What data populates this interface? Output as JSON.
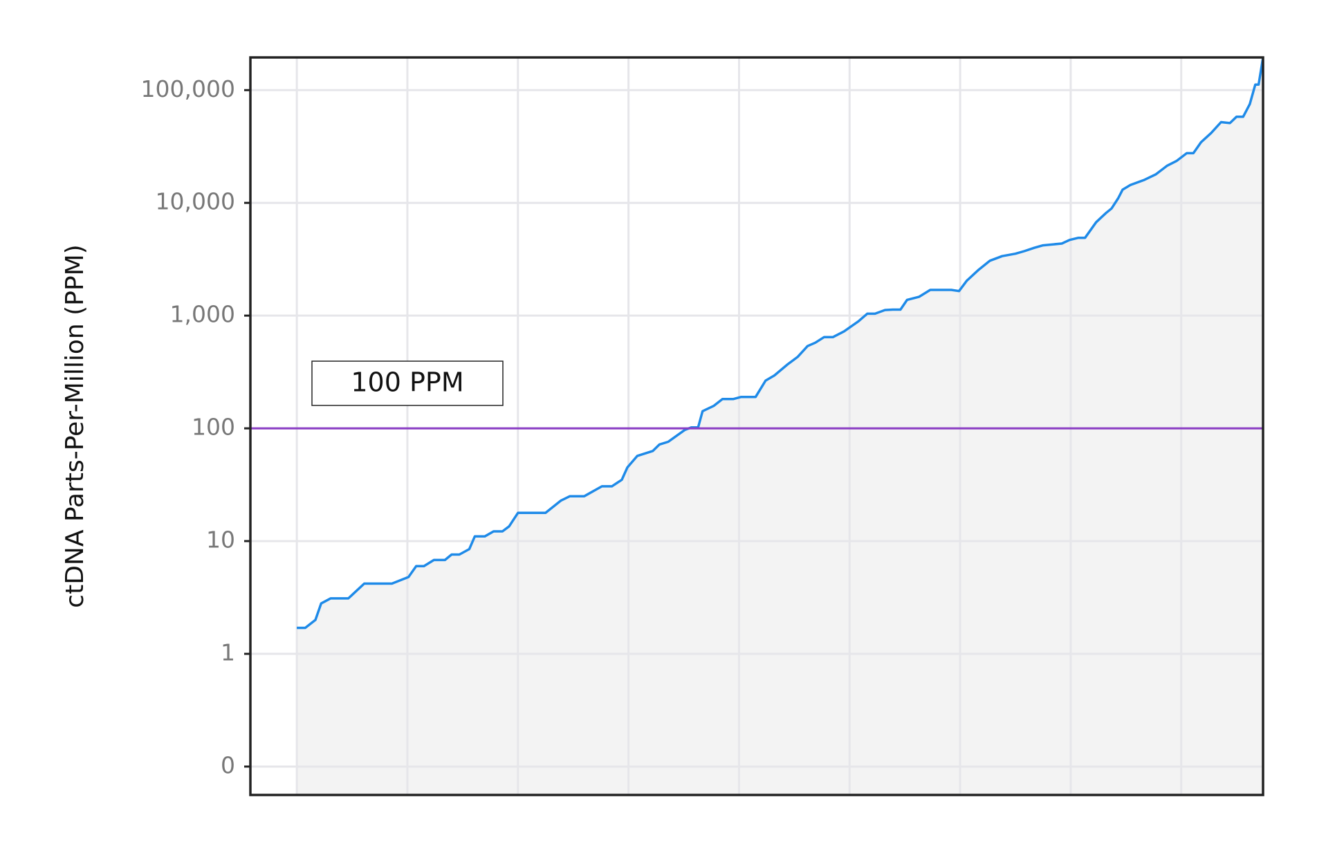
{
  "chart_data": {
    "type": "area",
    "ylabel": "ctDNA Parts-Per-Million (PPM)",
    "log_scale_y": true,
    "grid": true,
    "show_xtick_labels": false,
    "xlim": [
      -4.2,
      87.4
    ],
    "xticks": [
      0,
      10,
      20,
      30,
      40,
      50,
      60,
      70,
      80
    ],
    "ylim": [
      0.056,
      195000
    ],
    "yticks": [
      {
        "value": 0.1,
        "label": "0"
      },
      1,
      10,
      100,
      {
        "value": 1000,
        "label": "1,000"
      },
      {
        "value": 10000,
        "label": "10,000"
      },
      {
        "value": 100000,
        "label": "100,000"
      }
    ],
    "series": [
      {
        "color": "#1e8ae8",
        "fill": "#f3f3f3",
        "x": [
          0,
          0.76,
          1.68,
          2.2,
          3.05,
          4.66,
          6.1,
          8.6,
          10.1,
          10.8,
          11.5,
          12.4,
          13.4,
          14.0,
          14.7,
          15.6,
          16.1,
          17.0,
          17.8,
          18.6,
          19.2,
          20.0,
          22.5,
          23.9,
          24.7,
          26.0,
          27.6,
          28.5,
          29.4,
          29.9,
          30.8,
          32.2,
          32.8,
          33.6,
          35.1,
          35.7,
          36.3,
          36.7,
          37.7,
          38.5,
          39.5,
          40.2,
          41.5,
          42.4,
          43.2,
          44.4,
          45.3,
          46.2,
          46.9,
          47.7,
          48.5,
          49.5,
          50.8,
          51.6,
          52.3,
          53.2,
          53.9,
          54.6,
          55.2,
          56.3,
          57.3,
          59.2,
          59.9,
          60.6,
          61.7,
          62.7,
          63.8,
          65.0,
          65.8,
          66.7,
          67.5,
          69.2,
          69.9,
          70.7,
          71.3,
          72.3,
          73.2,
          73.7,
          74.3,
          74.7,
          75.4,
          76.6,
          77.7,
          78.7,
          79.6,
          80.5,
          81.1,
          81.8,
          82.7,
          83.6,
          84.4,
          85.0,
          85.6,
          86.2,
          86.7,
          87.0,
          87.4
        ],
        "values": [
          1.7,
          1.7,
          2.0,
          2.8,
          3.1,
          3.1,
          4.2,
          4.2,
          4.8,
          6.0,
          6.0,
          6.8,
          6.8,
          7.6,
          7.6,
          8.5,
          11,
          11,
          12.2,
          12.2,
          13.5,
          17.8,
          17.8,
          22.9,
          25,
          25,
          30.6,
          30.6,
          35,
          45,
          57,
          63,
          72,
          76,
          97,
          102,
          102,
          142,
          158,
          182,
          182,
          190,
          190,
          265,
          295,
          370,
          430,
          537,
          575,
          645,
          645,
          725,
          890,
          1040,
          1040,
          1120,
          1130,
          1130,
          1380,
          1470,
          1690,
          1690,
          1650,
          2040,
          2560,
          3070,
          3370,
          3540,
          3730,
          3990,
          4200,
          4360,
          4690,
          4900,
          4900,
          6730,
          8140,
          8920,
          11000,
          13100,
          14400,
          15900,
          17900,
          21300,
          23600,
          27600,
          27600,
          34600,
          41600,
          52000,
          51000,
          58000,
          58000,
          75000,
          112000,
          112000,
          195000
        ]
      }
    ],
    "hline": {
      "value": 100,
      "color": "#8a3cc4"
    },
    "annotation": "100 PPM"
  }
}
